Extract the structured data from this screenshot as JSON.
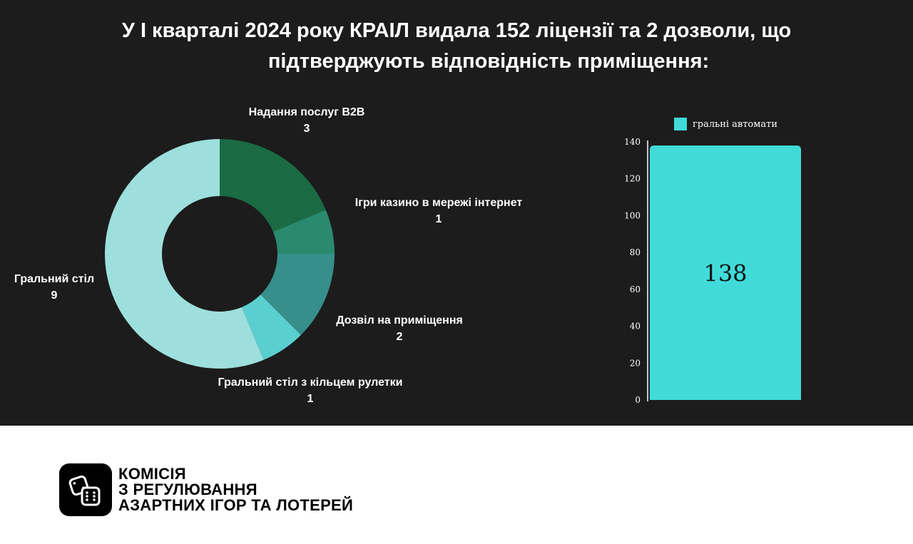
{
  "title": {
    "line1": "У І кварталі 2024 року КРАІЛ видала 152 ліцензії та 2 дозволи, що",
    "line2": "підтверджують відповідність приміщення:"
  },
  "chart_data": [
    {
      "type": "pie",
      "donut": true,
      "slices": [
        {
          "label": "Надання послуг B2B",
          "value": 3,
          "color": "#1a6b44"
        },
        {
          "label": "Ігри казино в мережі інтернет",
          "value": 1,
          "color": "#2a8a6e"
        },
        {
          "label": "Дозвіл на приміщення",
          "value": 2,
          "color": "#368f8b"
        },
        {
          "label": "Гральний стіл з кільцем рулетки",
          "value": 1,
          "color": "#5acfcf"
        },
        {
          "label": "Гральний стіл",
          "value": 9,
          "color": "#9ddfdc"
        }
      ]
    },
    {
      "type": "bar",
      "categories": [
        ""
      ],
      "series": [
        {
          "name": "гральні автомати",
          "values": [
            138
          ],
          "color": "#40dbd9"
        }
      ],
      "data_label": "138",
      "ylim": [
        0,
        140
      ],
      "yticks": [
        "0",
        "20",
        "40",
        "60",
        "80",
        "100",
        "120",
        "140"
      ],
      "legend": "top",
      "grid": false
    }
  ],
  "footer": {
    "org_line1": "КОМІСІЯ",
    "org_line2": "З РЕГУЛЮВАННЯ",
    "org_line3": "АЗАРТНИХ ІГОР ТА ЛОТЕРЕЙ"
  },
  "logo": {
    "icon": "dice-icon"
  }
}
